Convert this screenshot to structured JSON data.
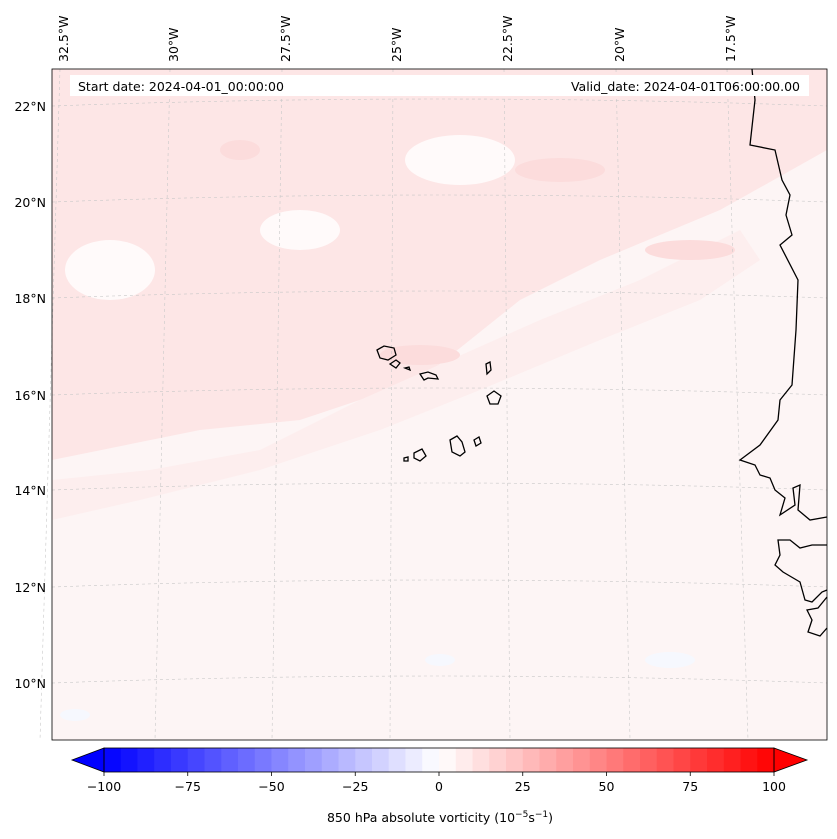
{
  "map": {
    "start_date": "Start date: 2024-04-01_00:00:00",
    "valid_date": "Valid_date: 2024-04-01T06:00:00.00",
    "lon_labels": [
      "32.5°W",
      "30°W",
      "27.5°W",
      "25°W",
      "22.5°W",
      "20°W",
      "17.5°W"
    ],
    "lat_labels": [
      "22°N",
      "20°N",
      "18°N",
      "16°N",
      "14°N",
      "12°N",
      "10°N"
    ],
    "field_color": "#fdf3f3",
    "coastline_color": "#000000",
    "gridline_color": "#c8c8c8"
  },
  "colorbar": {
    "ticks": [
      "−100",
      "−75",
      "−50",
      "−25",
      "0",
      "25",
      "50",
      "75",
      "100"
    ],
    "label_main": "850 hPa absolute vorticity (10",
    "label_exp1": "−5",
    "label_mid": "s",
    "label_exp2": "−1",
    "label_end": ")",
    "min_color": "#0000ff",
    "mid_color": "#ffffff",
    "max_color": "#ff0000",
    "levels": 40
  }
}
